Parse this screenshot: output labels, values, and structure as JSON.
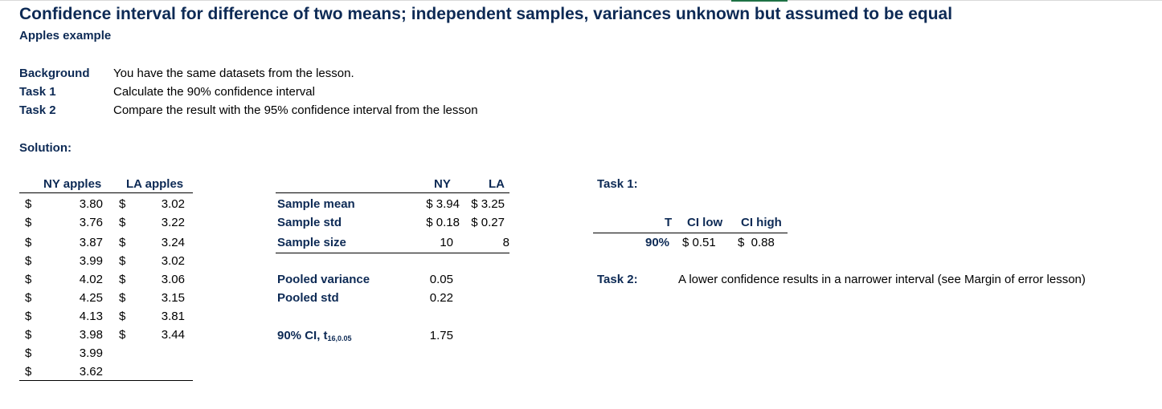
{
  "title": "Confidence interval for difference of two means; independent samples, variances unknown but assumed to be equal",
  "subtitle": "Apples example",
  "info": [
    {
      "label": "Background",
      "text": "You have the same datasets from the lesson."
    },
    {
      "label": "Task 1",
      "text": "Calculate the 90% confidence interval"
    },
    {
      "label": "Task 2",
      "text": "Compare the result with the 95% confidence interval from the lesson"
    }
  ],
  "solution_label": "Solution:",
  "data_table": {
    "headers": [
      "NY apples",
      "LA apples"
    ],
    "currency": "$",
    "ny": [
      "3.80",
      "3.76",
      "3.87",
      "3.99",
      "4.02",
      "4.25",
      "4.13",
      "3.98",
      "3.99",
      "3.62"
    ],
    "la": [
      "3.02",
      "3.22",
      "3.24",
      "3.02",
      "3.06",
      "3.15",
      "3.81",
      "3.44"
    ]
  },
  "stats": {
    "headers": {
      "ny": "NY",
      "la": "LA"
    },
    "sample_mean": {
      "label": "Sample mean",
      "ny": "$ 3.94",
      "la": "$ 3.25"
    },
    "sample_std": {
      "label": "Sample std",
      "ny": "$ 0.18",
      "la": "$ 0.27"
    },
    "sample_size": {
      "label": "Sample size",
      "ny": "10",
      "la": "8"
    },
    "pooled_variance": {
      "label": "Pooled variance",
      "value": "0.05"
    },
    "pooled_std": {
      "label": "Pooled std",
      "value": "0.22"
    },
    "t_value": {
      "label": "90% CI, t",
      "subscript": "16,0.05",
      "value": "1.75"
    }
  },
  "task1": {
    "label": "Task 1:",
    "headers": [
      "T",
      "CI low",
      "CI high"
    ],
    "row": {
      "t": "90%",
      "ci_low": "$ 0.51",
      "ci_high": "$  0.88"
    }
  },
  "task2": {
    "label": "Task 2:",
    "answer": "A lower confidence results in a narrower interval (see Margin of error lesson)"
  }
}
